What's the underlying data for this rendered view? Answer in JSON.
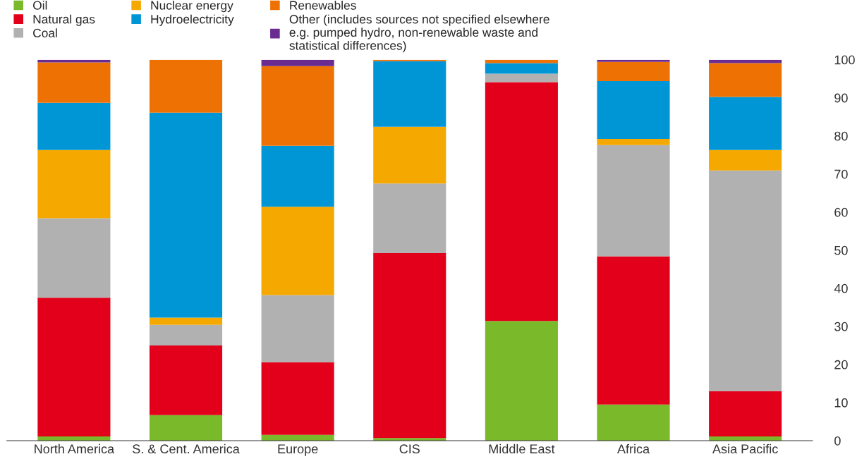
{
  "chart_data": {
    "type": "bar",
    "stacked": true,
    "categories": [
      "North America",
      "S. & Cent. America",
      "Europe",
      "CIS",
      "Middle East",
      "Africa",
      "Asia Pacific"
    ],
    "series": [
      {
        "name": "Oil",
        "color": "#7ab929",
        "values": [
          1.1,
          6.7,
          1.5,
          0.7,
          31.4,
          9.5,
          1.1
        ]
      },
      {
        "name": "Natural gas",
        "color": "#e2001a",
        "values": [
          36.4,
          18.3,
          19.1,
          48.5,
          62.7,
          38.9,
          11.9
        ]
      },
      {
        "name": "Coal",
        "color": "#b2b1b1",
        "values": [
          20.9,
          5.4,
          17.6,
          18.3,
          2.2,
          29.2,
          57.9
        ]
      },
      {
        "name": "Nuclear energy",
        "color": "#f5a800",
        "values": [
          17.9,
          1.9,
          23.2,
          14.9,
          0,
          1.6,
          5.4
        ]
      },
      {
        "name": "Hydroelectricity",
        "color": "#0096d6",
        "values": [
          12.4,
          53.8,
          16.0,
          17.2,
          2.8,
          15.2,
          13.9
        ]
      },
      {
        "name": "Renewables",
        "color": "#ee7203",
        "values": [
          10.6,
          13.9,
          20.9,
          0.4,
          0.9,
          5.0,
          8.9
        ]
      },
      {
        "name": "Other (includes sources not specified elsewhere\ne.g. pumped hydro, non-renewable waste and\nstatistical differences)",
        "color": "#6a2c91",
        "values": [
          0.7,
          0,
          1.7,
          0,
          0,
          0.6,
          0.9
        ]
      }
    ],
    "ylim": [
      0,
      100
    ],
    "yticks": [
      0,
      10,
      20,
      30,
      40,
      50,
      60,
      70,
      80,
      90,
      100
    ],
    "grid": false,
    "legend": "top left"
  }
}
